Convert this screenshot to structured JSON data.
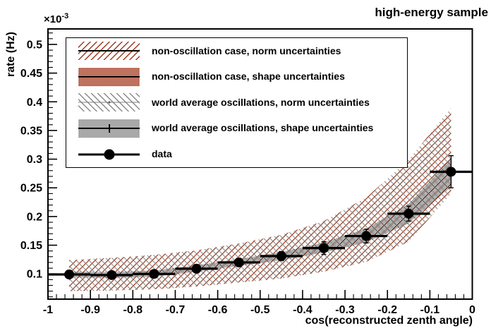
{
  "title": "high-energy sample",
  "legend": {
    "items": [
      {
        "label": "non-oscillation case, norm uncertainties",
        "swatch": "hatch-red"
      },
      {
        "label": "non-oscillation case, shape uncertainties",
        "swatch": "check-red"
      },
      {
        "label": "world average oscillations, norm uncertainties",
        "swatch": "hatch-gray"
      },
      {
        "label": "world average oscillations, shape uncertainties",
        "swatch": "check-gray"
      },
      {
        "label": "data",
        "swatch": "data-marker"
      }
    ]
  },
  "chart_data": {
    "type": "scatter",
    "title": "high-energy sample",
    "xlabel": "cos(reconstructed zenth angle)",
    "ylabel": "rate (Hz)",
    "y_axis_multiplier": {
      "base": "×10",
      "exp": "-3"
    },
    "xlim": [
      -1,
      0
    ],
    "ylim": [
      0.056,
      0.527
    ],
    "xticks": {
      "major": [
        -1,
        -0.9,
        -0.8,
        -0.7,
        -0.6,
        -0.5,
        -0.4,
        -0.3,
        -0.2,
        -0.1,
        0
      ],
      "labels": [
        "-1",
        "-0.9",
        "-0.8",
        "-0.7",
        "-0.6",
        "-0.5",
        "-0.4",
        "-0.3",
        "-0.2",
        "-0.1",
        "0"
      ],
      "minor_step": 0.02
    },
    "yticks": {
      "major": [
        0.1,
        0.15,
        0.2,
        0.25,
        0.3,
        0.35,
        0.4,
        0.45,
        0.5
      ],
      "labels": [
        "0.1",
        "0.15",
        "0.2",
        "0.25",
        "0.3",
        "0.35",
        "0.4",
        "0.45",
        "0.5"
      ],
      "minor_step": 0.01
    },
    "x": [
      -0.95,
      -0.85,
      -0.75,
      -0.65,
      -0.55,
      -0.45,
      -0.35,
      -0.25,
      -0.15,
      -0.05
    ],
    "bin_half_width": 0.05,
    "legend_position": "top-left",
    "grid": false,
    "colors": {
      "non_oscillation": "#9e3a1e",
      "world_average": "#8a8a8a",
      "data": "#000000",
      "shape_band_fill": "#5f5f5f"
    },
    "series": [
      {
        "name": "norm uncertainties band (non-oscillation + world average overlap)",
        "type": "band",
        "fills": [
          "hatch-red",
          "hatch-gray"
        ],
        "top": [
          0.124,
          0.128,
          0.133,
          0.141,
          0.153,
          0.168,
          0.192,
          0.233,
          0.299,
          0.389
        ],
        "bottom": [
          0.07,
          0.071,
          0.073,
          0.078,
          0.085,
          0.092,
          0.104,
          0.121,
          0.156,
          0.24
        ]
      },
      {
        "name": "world average oscillations shape uncertainties band",
        "type": "band",
        "fills": [
          "check-gray"
        ],
        "top": [
          0.104,
          0.103,
          0.106,
          0.115,
          0.126,
          0.138,
          0.155,
          0.179,
          0.222,
          0.302
        ],
        "bottom": [
          0.094,
          0.093,
          0.095,
          0.104,
          0.114,
          0.124,
          0.137,
          0.155,
          0.188,
          0.252
        ]
      },
      {
        "name": "data",
        "type": "errorbar",
        "y": [
          0.099,
          0.098,
          0.1,
          0.109,
          0.12,
          0.131,
          0.145,
          0.166,
          0.205,
          0.278
        ],
        "yerr": [
          0.006,
          0.006,
          0.006,
          0.007,
          0.007,
          0.008,
          0.011,
          0.012,
          0.013,
          0.028
        ]
      }
    ]
  }
}
